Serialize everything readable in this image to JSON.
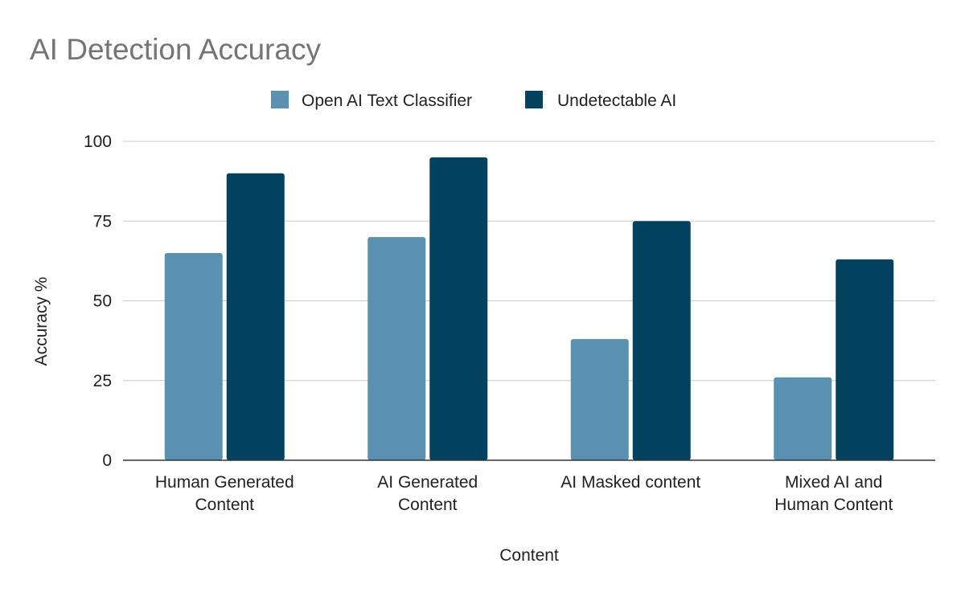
{
  "chart_data": {
    "type": "bar",
    "title": "AI Detection Accuracy",
    "xlabel": "Content",
    "ylabel": "Accuracy %",
    "ylim": [
      0,
      100
    ],
    "yticks": [
      0,
      25,
      50,
      75,
      100
    ],
    "grid": true,
    "legend_position": "top",
    "categories": [
      [
        "Human Generated",
        "Content"
      ],
      [
        "AI Generated",
        "Content"
      ],
      [
        "AI Masked content"
      ],
      [
        "Mixed AI and",
        "Human Content"
      ]
    ],
    "series": [
      {
        "name": "Open AI Text Classifier",
        "color": "#5a91b0",
        "values": [
          65,
          70,
          38,
          26
        ]
      },
      {
        "name": "Undetectable AI",
        "color": "#03425f",
        "values": [
          90,
          95,
          75,
          63
        ]
      }
    ]
  }
}
